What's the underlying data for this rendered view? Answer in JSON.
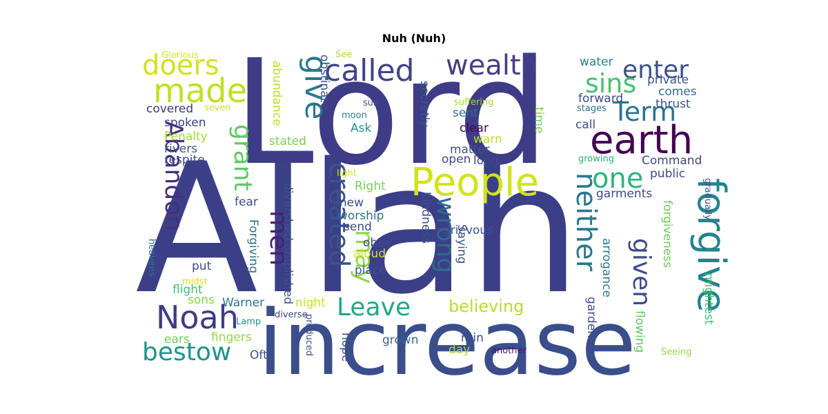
{
  "title": "Nuh (Nuh)",
  "words": [
    {
      "text": "Allah",
      "color": "#3b3f87"
    },
    {
      "text": "Lord",
      "color": "#3e3c86"
    },
    {
      "text": "increase",
      "color": "#3b4e8c"
    },
    {
      "text": "People",
      "color": "#d2e21b"
    },
    {
      "text": "earth",
      "color": "#440154"
    },
    {
      "text": "forgive",
      "color": "#22858e"
    },
    {
      "text": "called",
      "color": "#404387"
    },
    {
      "text": "made",
      "color": "#c2df23"
    },
    {
      "text": "wealth",
      "color": "#433e85"
    },
    {
      "text": "enter",
      "color": "#3b518b"
    },
    {
      "text": "doers",
      "color": "#d2e21b"
    },
    {
      "text": "sins",
      "color": "#4ac16d"
    },
    {
      "text": "give",
      "color": "#2a788e"
    },
    {
      "text": "Term",
      "color": "#2b748e"
    },
    {
      "text": "Noah",
      "color": "#3e3c86"
    },
    {
      "text": "bestow",
      "color": "#20928c"
    },
    {
      "text": "Leave",
      "color": "#22a884"
    },
    {
      "text": "one",
      "color": "#2fb47c"
    },
    {
      "text": "Abandon",
      "color": "#46307e"
    },
    {
      "text": "grant",
      "color": "#5ec962"
    },
    {
      "text": "men",
      "color": "#482173"
    },
    {
      "text": "created",
      "color": "#3b528b"
    },
    {
      "text": "may",
      "color": "#8fd744"
    },
    {
      "text": "wrong",
      "color": "#31688e"
    },
    {
      "text": "neither",
      "color": "#2a788e"
    },
    {
      "text": "given",
      "color": "#3e4a89"
    },
    {
      "text": "believing",
      "color": "#b5de2b"
    },
    {
      "text": "bestow_",
      "color": "#20928c"
    },
    {
      "text": "Glorious",
      "color": "#dce319"
    },
    {
      "text": "See",
      "color": "#b5de2b"
    },
    {
      "text": "water",
      "color": "#277f8e"
    },
    {
      "text": "private",
      "color": "#3b528b"
    },
    {
      "text": "comes",
      "color": "#31688e"
    },
    {
      "text": "forward",
      "color": "#3f4889"
    },
    {
      "text": "thrust",
      "color": "#3b528b"
    },
    {
      "text": "stages",
      "color": "#2c728e"
    },
    {
      "text": "call",
      "color": "#3e4a89"
    },
    {
      "text": "Command",
      "color": "#414487"
    },
    {
      "text": "public",
      "color": "#3e4a89"
    },
    {
      "text": "garments",
      "color": "#404688"
    },
    {
      "text": "growing",
      "color": "#27ad81"
    },
    {
      "text": "gradually",
      "color": "#3b528b"
    },
    {
      "text": "forgiveness",
      "color": "#6ccd5a"
    },
    {
      "text": "mightest",
      "color": "#40bd72"
    },
    {
      "text": "arrogance",
      "color": "#2a788e"
    },
    {
      "text": "gardens",
      "color": "#3e4c8a"
    },
    {
      "text": "flowing",
      "color": "#5ec962"
    },
    {
      "text": "Seeing",
      "color": "#93d741"
    },
    {
      "text": "another",
      "color": "#481467"
    },
    {
      "text": "covered",
      "color": "#46307e"
    },
    {
      "text": "seven",
      "color": "#d2e21b"
    },
    {
      "text": "spoken",
      "color": "#3b3f87"
    },
    {
      "text": "Penalty",
      "color": "#9fda3a"
    },
    {
      "text": "rivers",
      "color": "#3b528b"
    },
    {
      "text": "respite",
      "color": "#3e4a89"
    },
    {
      "text": "abundance",
      "color": "#b8de29"
    },
    {
      "text": "obstinate",
      "color": "#3b528b"
    },
    {
      "text": "stated",
      "color": "#7ad151"
    },
    {
      "text": "sun",
      "color": "#3b528b"
    },
    {
      "text": "moon",
      "color": "#26828e"
    },
    {
      "text": "Ask",
      "color": "#21918c"
    },
    {
      "text": "secretly",
      "color": "#3b528b"
    },
    {
      "text": "suffering",
      "color": "#a2da37"
    },
    {
      "text": "sent",
      "color": "#2c728e"
    },
    {
      "text": "clear",
      "color": "#440154"
    },
    {
      "text": "warn",
      "color": "#b8de29"
    },
    {
      "text": "matter",
      "color": "#3b528b"
    },
    {
      "text": "time",
      "color": "#7ad151"
    },
    {
      "text": "open",
      "color": "#414487"
    },
    {
      "text": "long",
      "color": "#3e4a89"
    },
    {
      "text": "light",
      "color": "#dce319"
    },
    {
      "text": "Right",
      "color": "#75d054"
    },
    {
      "text": "knew",
      "color": "#3b528b"
    },
    {
      "text": "fear",
      "color": "#3e4a89"
    },
    {
      "text": "divershed",
      "color": "#3b528b"
    },
    {
      "text": "worship",
      "color": "#2c728e"
    },
    {
      "text": "send",
      "color": "#3e4a89"
    },
    {
      "text": "obey",
      "color": "#3e4a89"
    },
    {
      "text": "aloud",
      "color": "#d2e21b"
    },
    {
      "text": "place",
      "color": "#3a548c"
    },
    {
      "text": "kindness",
      "color": "#3b528b"
    },
    {
      "text": "Saying",
      "color": "#3b528b"
    },
    {
      "text": "grievous",
      "color": "#3b528b"
    },
    {
      "text": "Forgiving",
      "color": "#2c728e"
    },
    {
      "text": "accomplished",
      "color": "#3b528b"
    },
    {
      "text": "put",
      "color": "#3e4a89"
    },
    {
      "text": "midst",
      "color": "#d2e21b"
    },
    {
      "text": "flight",
      "color": "#43bf71"
    },
    {
      "text": "sons",
      "color": "#7fd34e"
    },
    {
      "text": "heavens",
      "color": "#2c728e"
    },
    {
      "text": "Warner",
      "color": "#2c728e"
    },
    {
      "text": "night",
      "color": "#c8e020"
    },
    {
      "text": "diverse",
      "color": "#3e4a89"
    },
    {
      "text": "Lamp",
      "color": "#20928c"
    },
    {
      "text": "ears",
      "color": "#6ccd5a"
    },
    {
      "text": "fingers",
      "color": "#93d741"
    },
    {
      "text": "Oft",
      "color": "#3b528b"
    },
    {
      "text": "produced",
      "color": "#3b528b"
    },
    {
      "text": "hope",
      "color": "#3b528b"
    },
    {
      "text": "grown",
      "color": "#31688e"
    },
    {
      "text": "rain",
      "color": "#3e4a89"
    },
    {
      "text": "day",
      "color": "#9fda3a"
    }
  ]
}
